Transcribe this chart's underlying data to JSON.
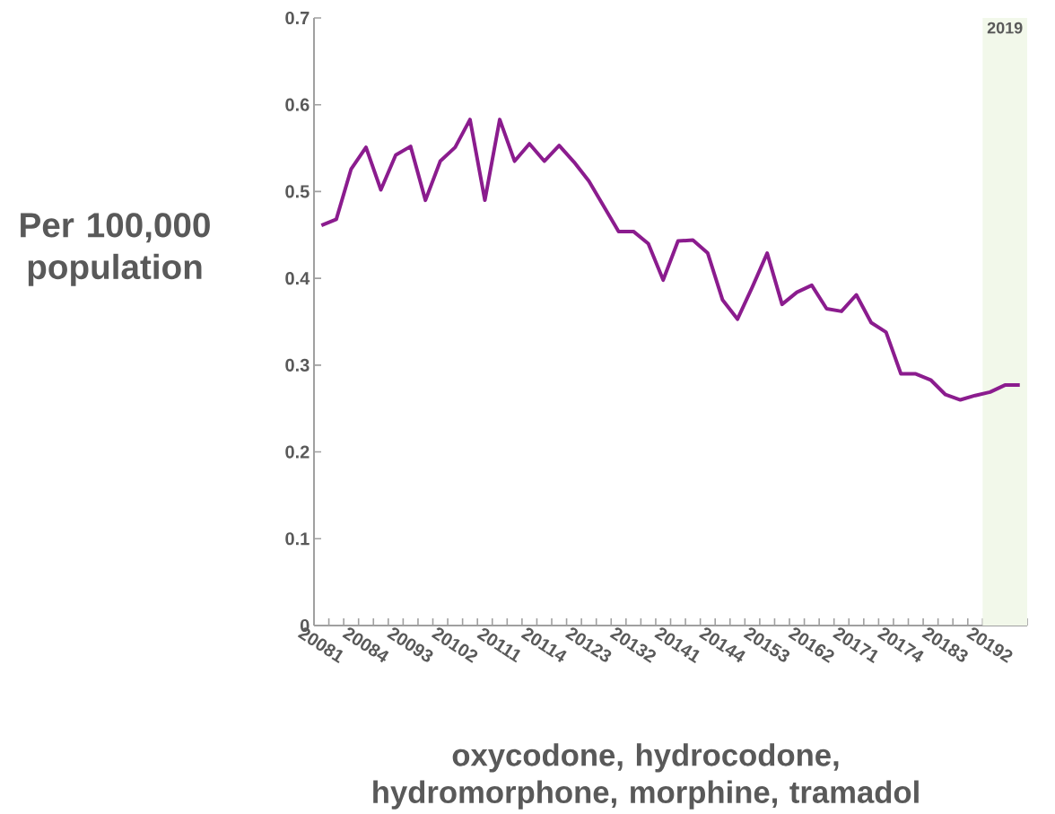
{
  "chart_data": {
    "type": "line",
    "xlabel": "oxycodone, hydrocodone, hydromorphone, morphine, tramadol",
    "ylabel": "Per 100,000 population",
    "categories": [
      "20081",
      null,
      null,
      "20084",
      null,
      null,
      "20093",
      null,
      null,
      "20102",
      null,
      null,
      "20111",
      null,
      null,
      "20114",
      null,
      null,
      "20123",
      null,
      null,
      "20132",
      null,
      null,
      "20141",
      null,
      null,
      "20144",
      null,
      null,
      "20153",
      null,
      null,
      "20162",
      null,
      null,
      "20171",
      null,
      null,
      "20174",
      null,
      null,
      "20183",
      null,
      null,
      "20192",
      null,
      null
    ],
    "series": [
      {
        "color": "#8b1c8e",
        "values": [
          0.461,
          0.468,
          0.526,
          0.551,
          0.502,
          0.542,
          0.552,
          0.49,
          0.535,
          0.551,
          0.583,
          0.49,
          0.583,
          0.535,
          0.555,
          0.535,
          0.553,
          0.534,
          0.512,
          0.483,
          0.454,
          0.454,
          0.44,
          0.398,
          0.443,
          0.444,
          0.429,
          0.375,
          0.353,
          0.39,
          0.429,
          0.37,
          0.384,
          0.392,
          0.365,
          0.362,
          0.381,
          0.349,
          0.338,
          0.29,
          0.29,
          0.283,
          0.266,
          0.26,
          0.265,
          0.269,
          0.277,
          0.277
        ]
      }
    ],
    "ylim": [
      0,
      0.7
    ],
    "yticks": [
      0,
      0.1,
      0.2,
      0.3,
      0.4,
      0.5,
      0.6,
      0.7
    ],
    "annotations": [
      "2019"
    ],
    "grid": false,
    "marker": "none",
    "line_style": "solid"
  }
}
